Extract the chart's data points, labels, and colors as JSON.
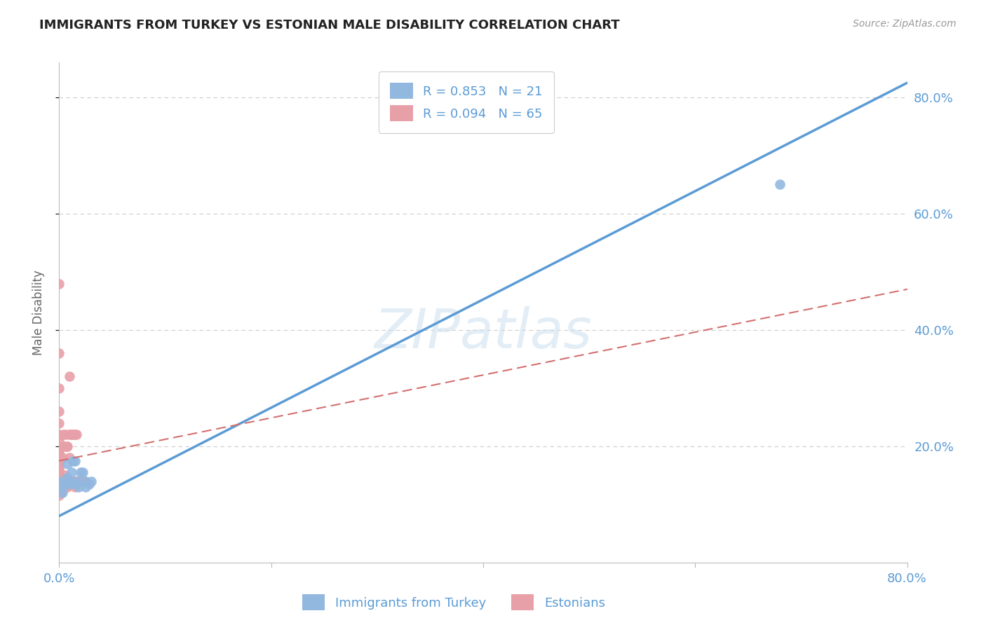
{
  "title": "IMMIGRANTS FROM TURKEY VS ESTONIAN MALE DISABILITY CORRELATION CHART",
  "source": "Source: ZipAtlas.com",
  "ylabel": "Male Disability",
  "xlim": [
    0.0,
    0.8
  ],
  "ylim": [
    0.0,
    0.86
  ],
  "blue_color": "#92b8e0",
  "pink_color": "#e8a0a8",
  "blue_line_color": "#5b9bd5",
  "pink_line_color": "#d47070",
  "grid_color": "#cccccc",
  "title_color": "#222222",
  "label_color": "#5b9bd5",
  "legend_R1": "R = 0.853",
  "legend_N1": "N = 21",
  "legend_R2": "R = 0.094",
  "legend_N2": "N = 65",
  "blue_line_x0": 0.0,
  "blue_line_y0": 0.08,
  "blue_line_x1": 0.8,
  "blue_line_y1": 0.825,
  "pink_line_x0": 0.0,
  "pink_line_y0": 0.175,
  "pink_line_x1": 0.8,
  "pink_line_y1": 0.47,
  "blue_scatter_x": [
    0.0,
    0.0,
    0.003,
    0.005,
    0.007,
    0.008,
    0.009,
    0.01,
    0.012,
    0.013,
    0.015,
    0.015,
    0.017,
    0.018,
    0.02,
    0.022,
    0.025,
    0.025,
    0.028,
    0.03,
    0.68
  ],
  "blue_scatter_y": [
    0.13,
    0.14,
    0.12,
    0.135,
    0.145,
    0.17,
    0.135,
    0.14,
    0.155,
    0.175,
    0.135,
    0.175,
    0.14,
    0.13,
    0.155,
    0.155,
    0.14,
    0.13,
    0.135,
    0.14,
    0.65
  ],
  "pink_scatter_x": [
    0.0,
    0.0,
    0.0,
    0.0,
    0.0,
    0.0,
    0.0,
    0.0,
    0.0,
    0.0,
    0.0,
    0.0,
    0.0,
    0.0,
    0.0,
    0.0,
    0.0,
    0.0,
    0.0,
    0.0,
    0.0,
    0.0,
    0.0,
    0.0,
    0.0,
    0.002,
    0.002,
    0.003,
    0.003,
    0.004,
    0.004,
    0.005,
    0.005,
    0.005,
    0.006,
    0.006,
    0.007,
    0.007,
    0.008,
    0.008,
    0.009,
    0.009,
    0.01,
    0.01,
    0.01,
    0.011,
    0.011,
    0.012,
    0.012,
    0.013,
    0.013,
    0.014,
    0.014,
    0.015,
    0.015,
    0.016,
    0.016,
    0.017,
    0.018,
    0.019,
    0.02,
    0.021,
    0.022,
    0.023,
    0.024
  ],
  "pink_scatter_y": [
    0.115,
    0.12,
    0.125,
    0.13,
    0.135,
    0.14,
    0.145,
    0.15,
    0.155,
    0.16,
    0.165,
    0.17,
    0.175,
    0.18,
    0.185,
    0.19,
    0.195,
    0.2,
    0.21,
    0.22,
    0.24,
    0.26,
    0.3,
    0.36,
    0.48,
    0.12,
    0.13,
    0.13,
    0.18,
    0.14,
    0.22,
    0.13,
    0.15,
    0.2,
    0.14,
    0.22,
    0.14,
    0.2,
    0.13,
    0.2,
    0.14,
    0.22,
    0.14,
    0.18,
    0.32,
    0.14,
    0.22,
    0.14,
    0.22,
    0.14,
    0.22,
    0.14,
    0.22,
    0.13,
    0.22,
    0.14,
    0.22,
    0.14,
    0.14,
    0.14,
    0.14,
    0.14,
    0.14,
    0.14,
    0.14
  ],
  "background_color": "#ffffff"
}
